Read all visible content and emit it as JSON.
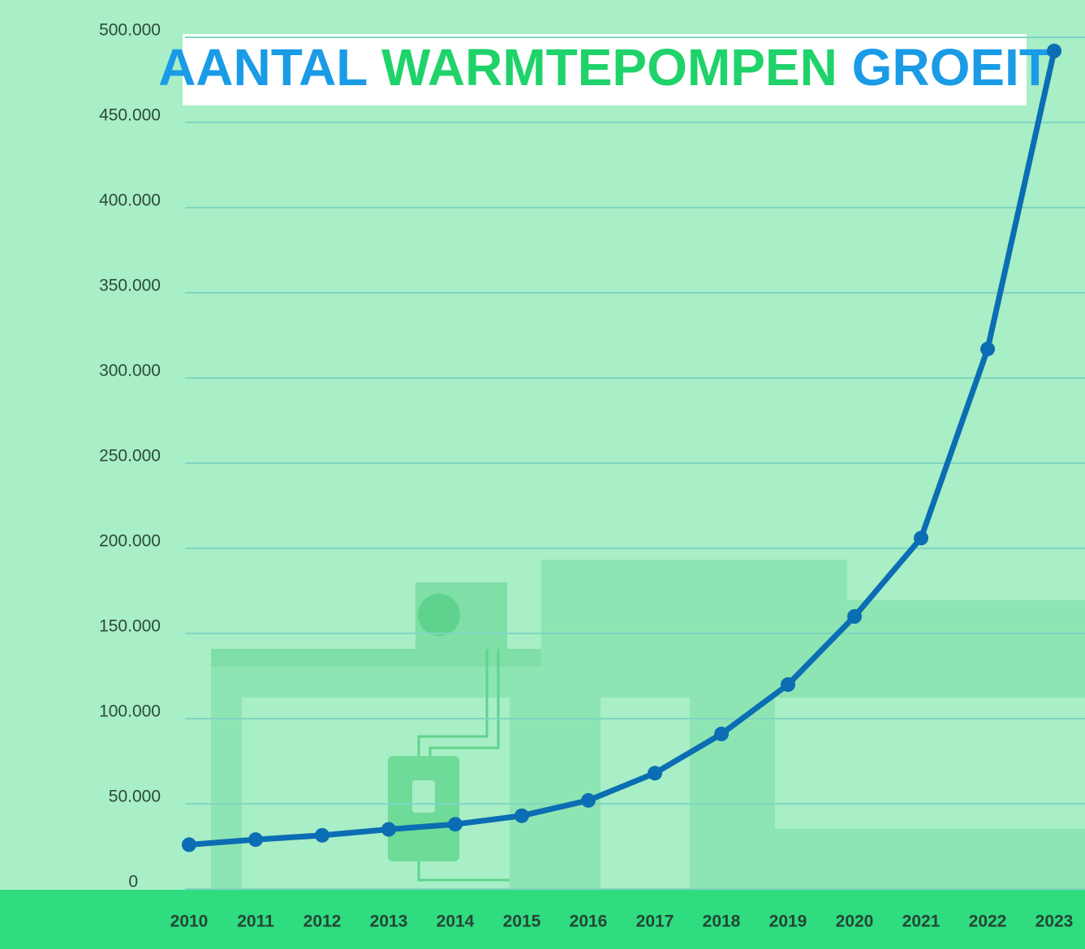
{
  "chart_data": {
    "type": "line",
    "title": [
      {
        "text": "AANTAL",
        "color": "#1a9be6"
      },
      {
        "text": "WARMTEPOMPEN",
        "color": "#1fd36a"
      },
      {
        "text": "GROEIT",
        "color": "#1a9be6"
      }
    ],
    "categories": [
      "2010",
      "2011",
      "2012",
      "2013",
      "2014",
      "2015",
      "2016",
      "2017",
      "2018",
      "2019",
      "2020",
      "2021",
      "2022",
      "2023"
    ],
    "series": [
      {
        "color": "#0b6db3",
        "values": [
          26000,
          29000,
          31500,
          35000,
          38000,
          43000,
          52000,
          68000,
          91000,
          120000,
          160000,
          206000,
          317000,
          492000
        ]
      }
    ],
    "ylim": [
      0,
      500000
    ],
    "yticks": [
      0,
      {
        "value": 50000,
        "label": "50.000"
      },
      {
        "value": 100000,
        "label": "100.000"
      },
      {
        "value": 150000,
        "label": "150.000"
      },
      {
        "value": 200000,
        "label": "200.000"
      },
      {
        "value": 250000,
        "label": "250.000"
      },
      {
        "value": 300000,
        "label": "300.000"
      },
      {
        "value": 350000,
        "label": "350.000"
      },
      {
        "value": 400000,
        "label": "400.000"
      },
      {
        "value": 450000,
        "label": "450.000"
      },
      {
        "value": 500000,
        "label": "500.000"
      }
    ],
    "grid": true
  }
}
